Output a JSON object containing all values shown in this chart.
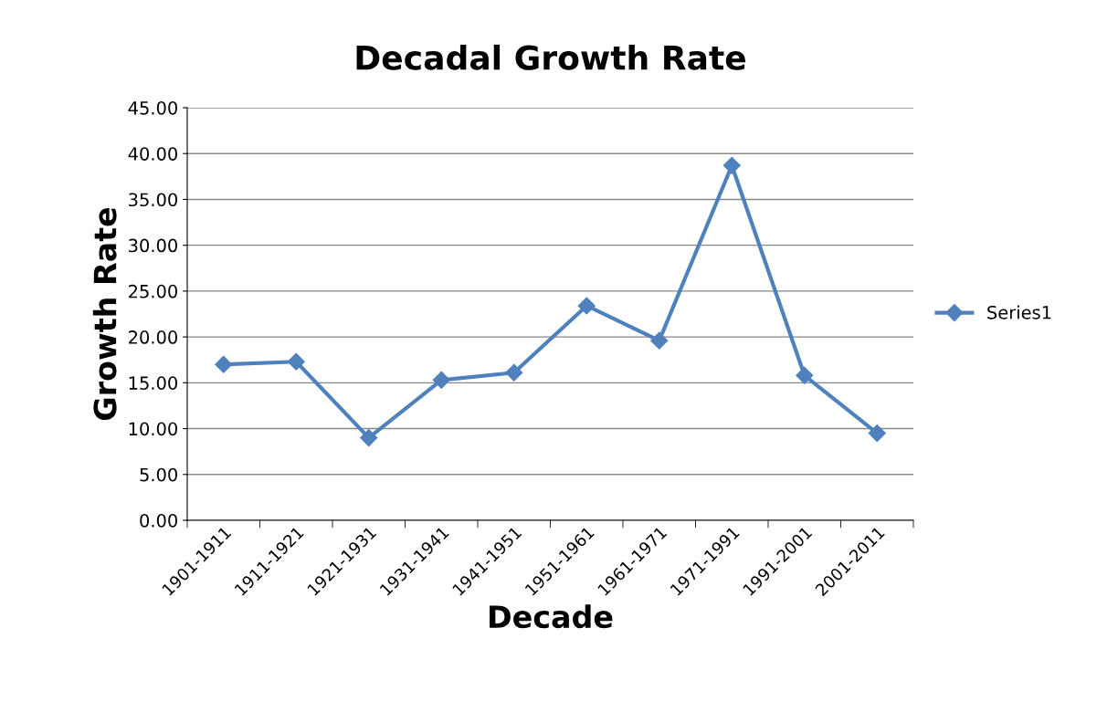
{
  "chart_data": {
    "type": "line",
    "title": "Decadal Growth Rate",
    "xlabel": "Decade",
    "ylabel": "Growth Rate",
    "categories": [
      "1901-1911",
      "1911-1921",
      "1921-1931",
      "1931-1941",
      "1941-1951",
      "1951-1961",
      "1961-1971",
      "1971-1991",
      "1991-2001",
      "2001-2011"
    ],
    "series": [
      {
        "name": "Series1",
        "color": "#4f81bd",
        "values": [
          17.0,
          17.3,
          9.0,
          15.3,
          16.1,
          23.4,
          19.6,
          38.7,
          15.8,
          9.5
        ]
      }
    ],
    "ylim": [
      0,
      45
    ],
    "yticks": [
      {
        "value": 0,
        "label": "0.00"
      },
      {
        "value": 5,
        "label": "5.00"
      },
      {
        "value": 10,
        "label": "10.00"
      },
      {
        "value": 15,
        "label": "15.00"
      },
      {
        "value": 20,
        "label": "20.00"
      },
      {
        "value": 25,
        "label": "25.00"
      },
      {
        "value": 30,
        "label": "30.00"
      },
      {
        "value": 35,
        "label": "35.00"
      },
      {
        "value": 40,
        "label": "40.00"
      },
      {
        "value": 45,
        "label": "45.00"
      }
    ],
    "grid": "y",
    "legend": "right",
    "marker": "diamond",
    "line_style": "solid"
  }
}
